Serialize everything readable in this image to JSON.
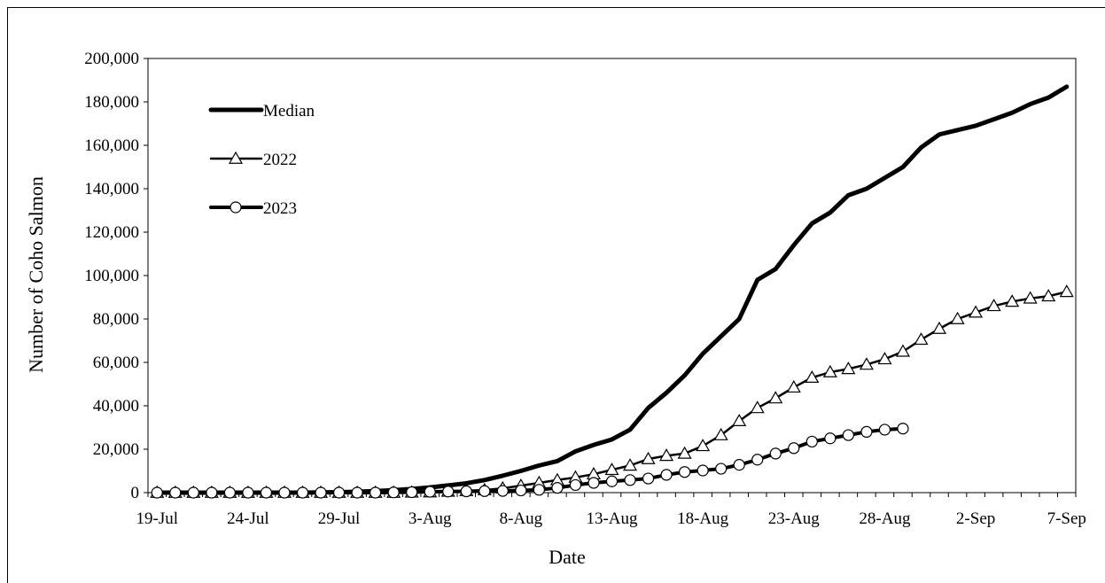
{
  "chart_data": {
    "type": "line",
    "title": "",
    "xlabel": "Date",
    "ylabel": "Number of Coho Salmon",
    "x_tick_labels": [
      "19-Jul",
      "24-Jul",
      "29-Jul",
      "3-Aug",
      "8-Aug",
      "13-Aug",
      "18-Aug",
      "23-Aug",
      "28-Aug",
      "2-Sep",
      "7-Sep"
    ],
    "y_tick_labels": [
      "0",
      "20,000",
      "40,000",
      "60,000",
      "80,000",
      "100,000",
      "120,000",
      "140,000",
      "160,000",
      "180,000",
      "200,000"
    ],
    "ylim": [
      0,
      200000
    ],
    "xlim": [
      "19-Jul",
      "7-Sep"
    ],
    "grid": false,
    "legend_position": "top-left",
    "series": [
      {
        "name": "Median",
        "marker": "none",
        "x": [
          "19-Jul",
          "20-Jul",
          "21-Jul",
          "22-Jul",
          "23-Jul",
          "24-Jul",
          "25-Jul",
          "26-Jul",
          "27-Jul",
          "28-Jul",
          "29-Jul",
          "30-Jul",
          "31-Jul",
          "1-Aug",
          "2-Aug",
          "3-Aug",
          "4-Aug",
          "5-Aug",
          "6-Aug",
          "7-Aug",
          "8-Aug",
          "9-Aug",
          "10-Aug",
          "11-Aug",
          "12-Aug",
          "13-Aug",
          "14-Aug",
          "15-Aug",
          "16-Aug",
          "17-Aug",
          "18-Aug",
          "19-Aug",
          "20-Aug",
          "21-Aug",
          "22-Aug",
          "23-Aug",
          "24-Aug",
          "25-Aug",
          "26-Aug",
          "27-Aug",
          "28-Aug",
          "29-Aug",
          "30-Aug",
          "31-Aug",
          "1-Sep",
          "2-Sep",
          "3-Sep",
          "4-Sep",
          "5-Sep",
          "6-Sep",
          "7-Sep"
        ],
        "values": [
          0,
          0,
          0,
          0,
          0,
          0,
          0,
          0,
          0,
          100,
          200,
          400,
          700,
          1100,
          1700,
          2400,
          3300,
          4300,
          5800,
          7800,
          10000,
          12500,
          14500,
          19000,
          22000,
          24500,
          29000,
          39000,
          46000,
          54000,
          64000,
          72000,
          80000,
          98000,
          103000,
          114000,
          124000,
          129000,
          137000,
          140000,
          145000,
          150000,
          159000,
          165000,
          167000,
          169000,
          172000,
          175000,
          179000,
          182000,
          187000
        ]
      },
      {
        "name": "2022",
        "marker": "triangle",
        "x": [
          "19-Jul",
          "20-Jul",
          "21-Jul",
          "22-Jul",
          "23-Jul",
          "24-Jul",
          "25-Jul",
          "26-Jul",
          "27-Jul",
          "28-Jul",
          "29-Jul",
          "30-Jul",
          "31-Jul",
          "1-Aug",
          "2-Aug",
          "3-Aug",
          "4-Aug",
          "5-Aug",
          "6-Aug",
          "7-Aug",
          "8-Aug",
          "9-Aug",
          "10-Aug",
          "11-Aug",
          "12-Aug",
          "13-Aug",
          "14-Aug",
          "15-Aug",
          "16-Aug",
          "17-Aug",
          "18-Aug",
          "19-Aug",
          "20-Aug",
          "21-Aug",
          "22-Aug",
          "23-Aug",
          "24-Aug",
          "25-Aug",
          "26-Aug",
          "27-Aug",
          "28-Aug",
          "29-Aug",
          "30-Aug",
          "31-Aug",
          "1-Sep",
          "2-Sep",
          "3-Sep",
          "4-Sep",
          "5-Sep",
          "6-Sep",
          "7-Sep"
        ],
        "values": [
          0,
          0,
          0,
          0,
          0,
          0,
          0,
          0,
          0,
          0,
          0,
          0,
          0,
          0,
          100,
          200,
          500,
          800,
          1200,
          2000,
          3200,
          4500,
          5800,
          7000,
          8500,
          10500,
          12500,
          15500,
          17000,
          18000,
          21500,
          26500,
          33000,
          39000,
          43500,
          48500,
          53000,
          55500,
          57000,
          59000,
          61500,
          65000,
          70500,
          75500,
          80000,
          83000,
          86000,
          88000,
          89500,
          90500,
          92500
        ]
      },
      {
        "name": "2023",
        "marker": "circle",
        "x": [
          "19-Jul",
          "20-Jul",
          "21-Jul",
          "22-Jul",
          "23-Jul",
          "24-Jul",
          "25-Jul",
          "26-Jul",
          "27-Jul",
          "28-Jul",
          "29-Jul",
          "30-Jul",
          "31-Jul",
          "1-Aug",
          "2-Aug",
          "3-Aug",
          "4-Aug",
          "5-Aug",
          "6-Aug",
          "7-Aug",
          "8-Aug",
          "9-Aug",
          "10-Aug",
          "11-Aug",
          "12-Aug",
          "13-Aug",
          "14-Aug",
          "15-Aug",
          "16-Aug",
          "17-Aug",
          "18-Aug",
          "19-Aug",
          "20-Aug",
          "21-Aug",
          "22-Aug",
          "23-Aug",
          "24-Aug",
          "25-Aug",
          "26-Aug",
          "27-Aug",
          "28-Aug",
          "29-Aug"
        ],
        "values": [
          0,
          0,
          0,
          0,
          0,
          0,
          0,
          0,
          0,
          0,
          0,
          0,
          0,
          100,
          200,
          400,
          500,
          600,
          700,
          800,
          1000,
          1300,
          2200,
          3500,
          4500,
          5200,
          5800,
          6500,
          8200,
          9500,
          10200,
          11000,
          12800,
          15200,
          18000,
          20500,
          23500,
          25000,
          26500,
          28000,
          29000,
          29500
        ]
      }
    ]
  }
}
